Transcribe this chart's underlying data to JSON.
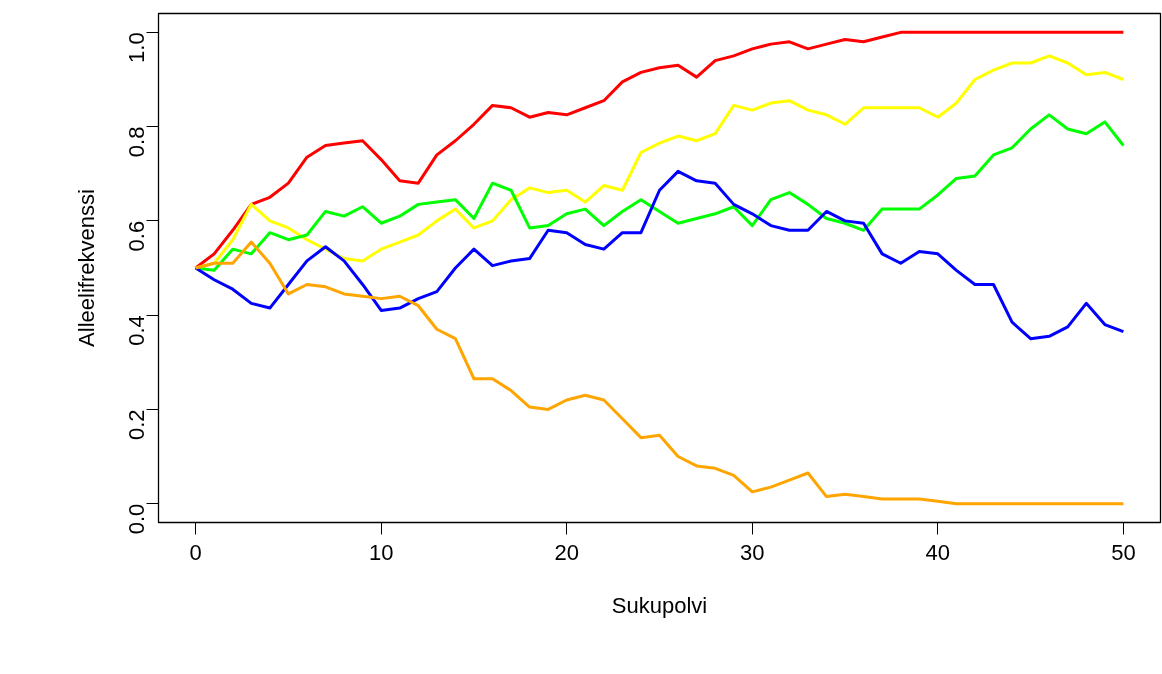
{
  "chart_data": {
    "type": "line",
    "xlabel": "Sukupolvi",
    "ylabel": "Alleelifrekvenssi",
    "x": [
      0,
      1,
      2,
      3,
      4,
      5,
      6,
      7,
      8,
      9,
      10,
      11,
      12,
      13,
      14,
      15,
      16,
      17,
      18,
      19,
      20,
      21,
      22,
      23,
      24,
      25,
      26,
      27,
      28,
      29,
      30,
      31,
      32,
      33,
      34,
      35,
      36,
      37,
      38,
      39,
      40,
      41,
      42,
      43,
      44,
      45,
      46,
      47,
      48,
      49,
      50
    ],
    "xlim": [
      -2,
      52
    ],
    "ylim": [
      -0.04,
      1.04
    ],
    "xticks": [
      0,
      10,
      20,
      30,
      40,
      50
    ],
    "yticks": [
      {
        "value": 0,
        "label": "0.0"
      },
      {
        "value": 0.2,
        "label": "0.2"
      },
      {
        "value": 0.4,
        "label": "0.4"
      },
      {
        "value": 0.6,
        "label": "0.6"
      },
      {
        "value": 0.8,
        "label": "0.8"
      },
      {
        "value": 1,
        "label": "1.0"
      }
    ],
    "grid": false,
    "marker": "none",
    "line_style": "solid",
    "series": [
      {
        "color": "#ff0000",
        "values": [
          0.5,
          0.53,
          0.58,
          0.635,
          0.65,
          0.68,
          0.735,
          0.76,
          0.765,
          0.77,
          0.73,
          0.685,
          0.68,
          0.74,
          0.77,
          0.805,
          0.845,
          0.84,
          0.82,
          0.83,
          0.825,
          0.84,
          0.855,
          0.895,
          0.915,
          0.925,
          0.93,
          0.905,
          0.94,
          0.95,
          0.965,
          0.975,
          0.98,
          0.965,
          0.975,
          0.985,
          0.98,
          0.99,
          1,
          1,
          1,
          1,
          1,
          1,
          1,
          1,
          1,
          1,
          1,
          1,
          1
        ]
      },
      {
        "color": "#ffff00",
        "values": [
          0.5,
          0.51,
          0.56,
          0.635,
          0.6,
          0.585,
          0.56,
          0.54,
          0.52,
          0.515,
          0.54,
          0.555,
          0.57,
          0.6,
          0.625,
          0.585,
          0.6,
          0.645,
          0.67,
          0.66,
          0.665,
          0.64,
          0.675,
          0.665,
          0.745,
          0.765,
          0.78,
          0.77,
          0.785,
          0.845,
          0.835,
          0.85,
          0.855,
          0.835,
          0.825,
          0.805,
          0.84,
          0.84,
          0.84,
          0.84,
          0.82,
          0.85,
          0.9,
          0.92,
          0.935,
          0.935,
          0.95,
          0.935,
          0.91,
          0.915,
          0.9
        ]
      },
      {
        "color": "#00ff00",
        "values": [
          0.5,
          0.495,
          0.54,
          0.53,
          0.575,
          0.56,
          0.57,
          0.62,
          0.61,
          0.63,
          0.595,
          0.61,
          0.635,
          0.64,
          0.645,
          0.605,
          0.68,
          0.665,
          0.585,
          0.59,
          0.615,
          0.625,
          0.59,
          0.62,
          0.645,
          0.62,
          0.595,
          0.605,
          0.615,
          0.63,
          0.59,
          0.645,
          0.66,
          0.635,
          0.605,
          0.595,
          0.58,
          0.625,
          0.625,
          0.625,
          0.655,
          0.69,
          0.695,
          0.74,
          0.755,
          0.795,
          0.825,
          0.795,
          0.785,
          0.81,
          0.76
        ]
      },
      {
        "color": "#0000ff",
        "values": [
          0.5,
          0.475,
          0.455,
          0.425,
          0.415,
          0.465,
          0.515,
          0.545,
          0.515,
          0.465,
          0.41,
          0.415,
          0.435,
          0.45,
          0.5,
          0.54,
          0.505,
          0.515,
          0.52,
          0.58,
          0.575,
          0.55,
          0.54,
          0.575,
          0.575,
          0.665,
          0.705,
          0.685,
          0.68,
          0.635,
          0.615,
          0.59,
          0.58,
          0.58,
          0.62,
          0.6,
          0.595,
          0.53,
          0.51,
          0.535,
          0.53,
          0.495,
          0.465,
          0.465,
          0.385,
          0.35,
          0.355,
          0.375,
          0.425,
          0.38,
          0.365
        ]
      },
      {
        "color": "#ffa500",
        "values": [
          0.5,
          0.51,
          0.51,
          0.555,
          0.51,
          0.445,
          0.465,
          0.46,
          0.445,
          0.44,
          0.435,
          0.44,
          0.42,
          0.37,
          0.35,
          0.265,
          0.265,
          0.24,
          0.205,
          0.2,
          0.22,
          0.23,
          0.22,
          0.18,
          0.14,
          0.145,
          0.1,
          0.08,
          0.075,
          0.06,
          0.025,
          0.035,
          0.05,
          0.065,
          0.015,
          0.02,
          0.015,
          0.01,
          0.01,
          0.01,
          0.005,
          0,
          0,
          0,
          0,
          0,
          0,
          0,
          0,
          0,
          0
        ]
      }
    ]
  }
}
